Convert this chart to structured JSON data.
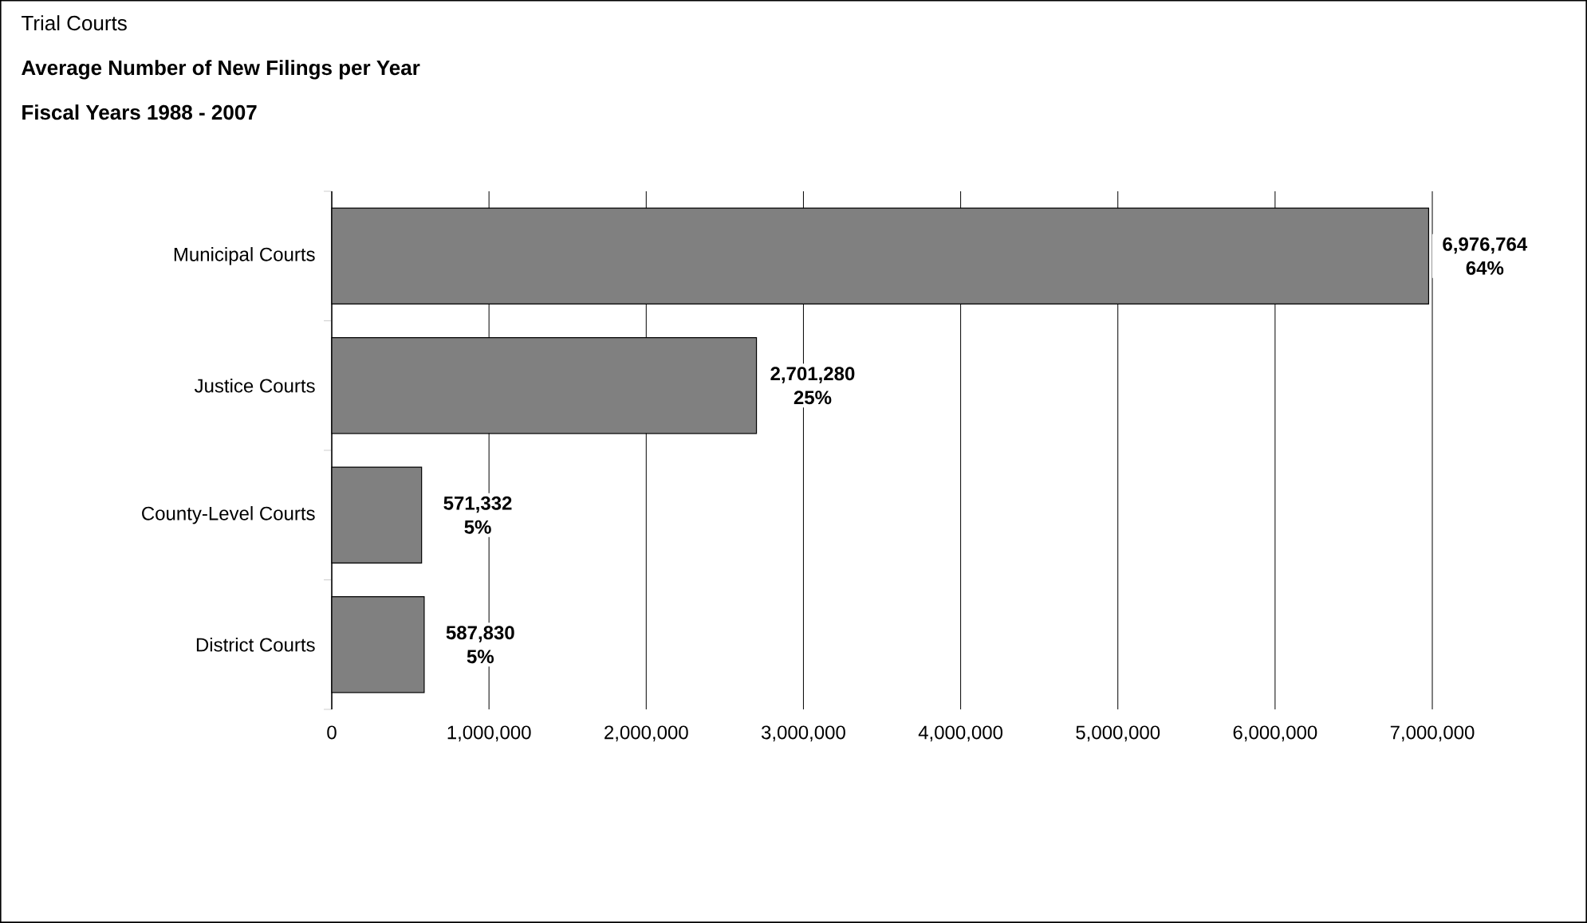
{
  "chart_data": {
    "type": "bar",
    "orientation": "horizontal",
    "annotations": [
      "Trial Courts"
    ],
    "title": "Average Number of New Filings per Year",
    "subtitle": "Fiscal Years 1988 - 2007",
    "categories": [
      "Municipal Courts",
      "Justice Courts",
      "County-Level Courts",
      "District Courts"
    ],
    "values": [
      6976764,
      2701280,
      571332,
      587830
    ],
    "value_labels": [
      "6,976,764 64%",
      "2,701,280 25%",
      "571,332 5%",
      "587,830 5%"
    ],
    "color": "#808080",
    "xlim": [
      0,
      7000000
    ],
    "xticks": [
      0,
      {
        "value": 1000000,
        "label": "1,000,000"
      },
      {
        "value": 2000000,
        "label": "2,000,000"
      },
      {
        "value": 3000000,
        "label": "3,000,000"
      },
      {
        "value": 4000000,
        "label": "4,000,000"
      },
      {
        "value": 5000000,
        "label": "5,000,000"
      },
      {
        "value": 6000000,
        "label": "6,000,000"
      },
      {
        "value": 7000000,
        "label": "7,000,000"
      }
    ],
    "grid": "x"
  }
}
